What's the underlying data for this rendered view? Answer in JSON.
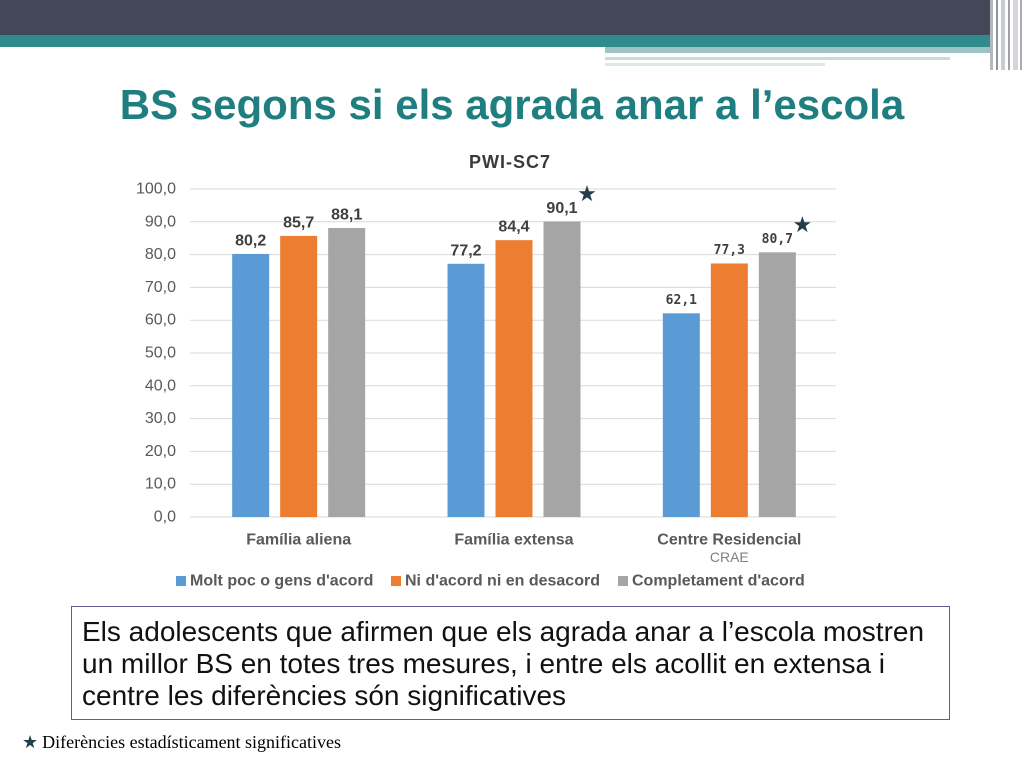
{
  "title": "BS segons si els agrada anar a l’escola",
  "colors": {
    "title": "#1f7e80",
    "header_band": "#434858",
    "accent_stripe": "#2f8b8c",
    "star": "#233d4d",
    "textbox_border": "#5f5c96"
  },
  "chart_data": {
    "type": "bar",
    "title": "PWI-SC7",
    "xlabel": "",
    "ylabel": "",
    "categories": [
      "Família aliena",
      "Família extensa",
      "Centre Residencial"
    ],
    "annotations": [
      {
        "category_index": 2,
        "text": "CRAE"
      }
    ],
    "series": [
      {
        "name": "Molt poc o gens d'acord",
        "color": "#5b9bd5",
        "values": [
          80.2,
          77.2,
          62.1
        ],
        "labels": [
          "80,2",
          "77,2",
          "62,1"
        ]
      },
      {
        "name": "Ni d'acord ni en desacord",
        "color": "#ed7d31",
        "values": [
          85.7,
          84.4,
          77.3
        ],
        "labels": [
          "85,7",
          "84,4",
          "77,3"
        ]
      },
      {
        "name": "Completament d'acord",
        "color": "#a5a5a5",
        "values": [
          88.1,
          90.1,
          80.7
        ],
        "labels": [
          "88,1",
          "90,1",
          "80,7"
        ]
      }
    ],
    "ylim": [
      0,
      100
    ],
    "yticks": [
      0,
      10,
      20,
      30,
      40,
      50,
      60,
      70,
      80,
      90,
      100
    ],
    "ytick_labels": [
      "0,0",
      "10,0",
      "20,0",
      "30,0",
      "40,0",
      "50,0",
      "60,0",
      "70,0",
      "80,0",
      "90,0",
      "100,0"
    ],
    "grid": true,
    "legend": "bottom",
    "significance_markers": [
      {
        "category_index": 1,
        "series_index": 2,
        "symbol": "★"
      },
      {
        "category_index": 2,
        "series_index": 2,
        "symbol": "★"
      }
    ]
  },
  "summary": {
    "lines": [
      "Els adolescents que afirmen que els agrada anar a l’escola mostren",
      "un millor BS en totes tres mesures, i entre els acollit en extensa i",
      "centre les diferències són significatives"
    ]
  },
  "footnote": {
    "symbol": "★",
    "text": "Diferències estadísticament significatives"
  }
}
